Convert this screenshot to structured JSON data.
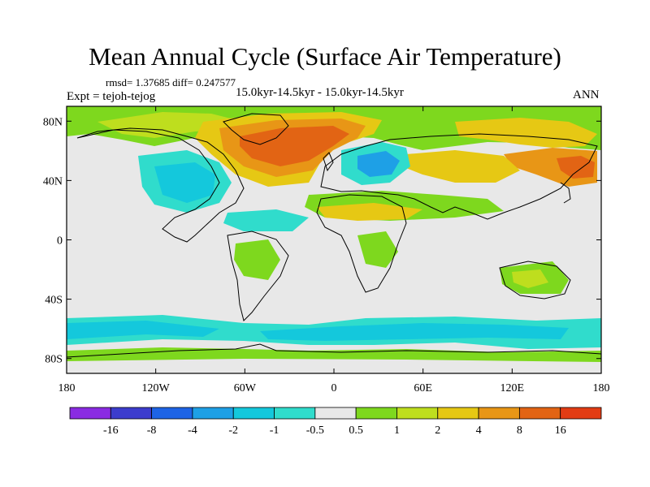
{
  "title": "Mean Annual Cycle (Surface Air Temperature)",
  "stats_line": "rmsd= 1.37685 diff= 0.247577",
  "experiment": "Expt = tejoh-tejog",
  "period": "15.0kyr-14.5kyr - 15.0kyr-14.5kyr",
  "season": "ANN",
  "lat_labels": [
    {
      "label": "80N",
      "lat": 80
    },
    {
      "label": "40N",
      "lat": 40
    },
    {
      "label": "0",
      "lat": 0
    },
    {
      "label": "40S",
      "lat": -40
    },
    {
      "label": "80S",
      "lat": -80
    }
  ],
  "lon_labels": [
    {
      "label": "180",
      "lon": -180
    },
    {
      "label": "120W",
      "lon": -120
    },
    {
      "label": "60W",
      "lon": -60
    },
    {
      "label": "0",
      "lon": 0
    },
    {
      "label": "60E",
      "lon": 60
    },
    {
      "label": "120E",
      "lon": 120
    },
    {
      "label": "180",
      "lon": 180
    }
  ],
  "colorbar": {
    "colors": [
      "#8a2be2",
      "#3c3ccd",
      "#1e64e6",
      "#1ea0e6",
      "#14c8dc",
      "#30dccc",
      "#e8e8e8",
      "#7ed81e",
      "#bede1e",
      "#e6c814",
      "#e89616",
      "#e26414",
      "#e23c14"
    ],
    "labels": [
      "-16",
      "-8",
      "-4",
      "-2",
      "-1",
      "-0.5",
      "0.5",
      "1",
      "2",
      "4",
      "8",
      "16"
    ]
  },
  "colors": {
    "ocean_neutral": "#e8e8e8",
    "coast": "#000000"
  }
}
